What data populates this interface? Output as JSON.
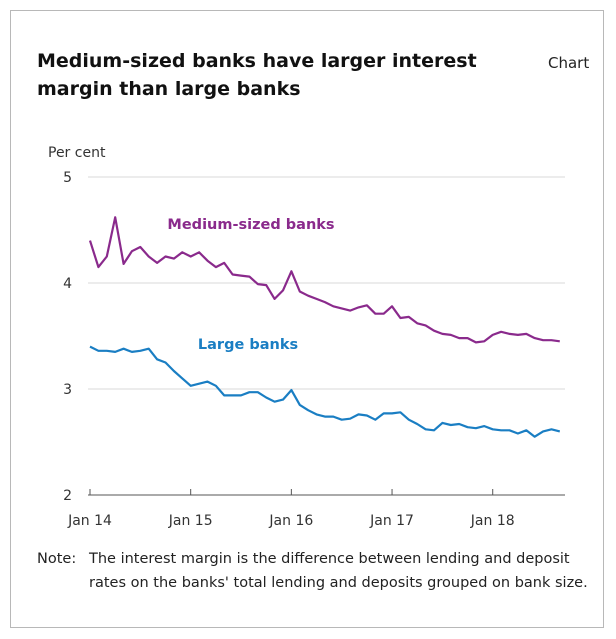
{
  "header": {
    "title": "Medium-sized banks have larger interest margin than large banks",
    "tag": "Chart"
  },
  "note": {
    "label": "Note:",
    "text": "The interest margin is the difference between lending and deposit rates on the banks' total lending and deposits grouped on bank size."
  },
  "chart_data": {
    "type": "line",
    "title": "Medium-sized banks have larger interest margin than large banks",
    "ylabel": "Per cent",
    "ylim": [
      2,
      5
    ],
    "yticks": [
      2,
      3,
      4,
      5
    ],
    "xticks": [
      "Jan 14",
      "Jan 15",
      "Jan 16",
      "Jan 17",
      "Jan 18"
    ],
    "grid": "horizontal",
    "x_start": "Jan 14",
    "frequency": "monthly",
    "colors": {
      "medium": "#8a2a8c",
      "large": "#1a7ec3",
      "grid": "#d9d9d9",
      "axis": "#555555"
    },
    "series": [
      {
        "name": "Medium-sized banks",
        "color": "#8a2a8c",
        "values": [
          4.4,
          4.15,
          4.25,
          4.62,
          4.18,
          4.3,
          4.34,
          4.25,
          4.19,
          4.25,
          4.23,
          4.29,
          4.25,
          4.29,
          4.21,
          4.15,
          4.19,
          4.08,
          4.07,
          4.06,
          3.99,
          3.98,
          3.85,
          3.93,
          4.11,
          3.92,
          3.88,
          3.85,
          3.82,
          3.78,
          3.76,
          3.74,
          3.77,
          3.79,
          3.71,
          3.71,
          3.78,
          3.67,
          3.68,
          3.62,
          3.6,
          3.55,
          3.52,
          3.51,
          3.48,
          3.48,
          3.44,
          3.45,
          3.51,
          3.54,
          3.52,
          3.51,
          3.52,
          3.48,
          3.46,
          3.46,
          3.45
        ]
      },
      {
        "name": "Large banks",
        "color": "#1a7ec3",
        "values": [
          3.4,
          3.36,
          3.36,
          3.35,
          3.38,
          3.35,
          3.36,
          3.38,
          3.28,
          3.25,
          3.17,
          3.1,
          3.03,
          3.05,
          3.07,
          3.03,
          2.94,
          2.94,
          2.94,
          2.97,
          2.97,
          2.92,
          2.88,
          2.9,
          2.99,
          2.85,
          2.8,
          2.76,
          2.74,
          2.74,
          2.71,
          2.72,
          2.76,
          2.75,
          2.71,
          2.77,
          2.77,
          2.78,
          2.71,
          2.67,
          2.62,
          2.61,
          2.68,
          2.66,
          2.67,
          2.64,
          2.63,
          2.65,
          2.62,
          2.61,
          2.61,
          2.58,
          2.61,
          2.55,
          2.6,
          2.62,
          2.6
        ]
      }
    ]
  }
}
